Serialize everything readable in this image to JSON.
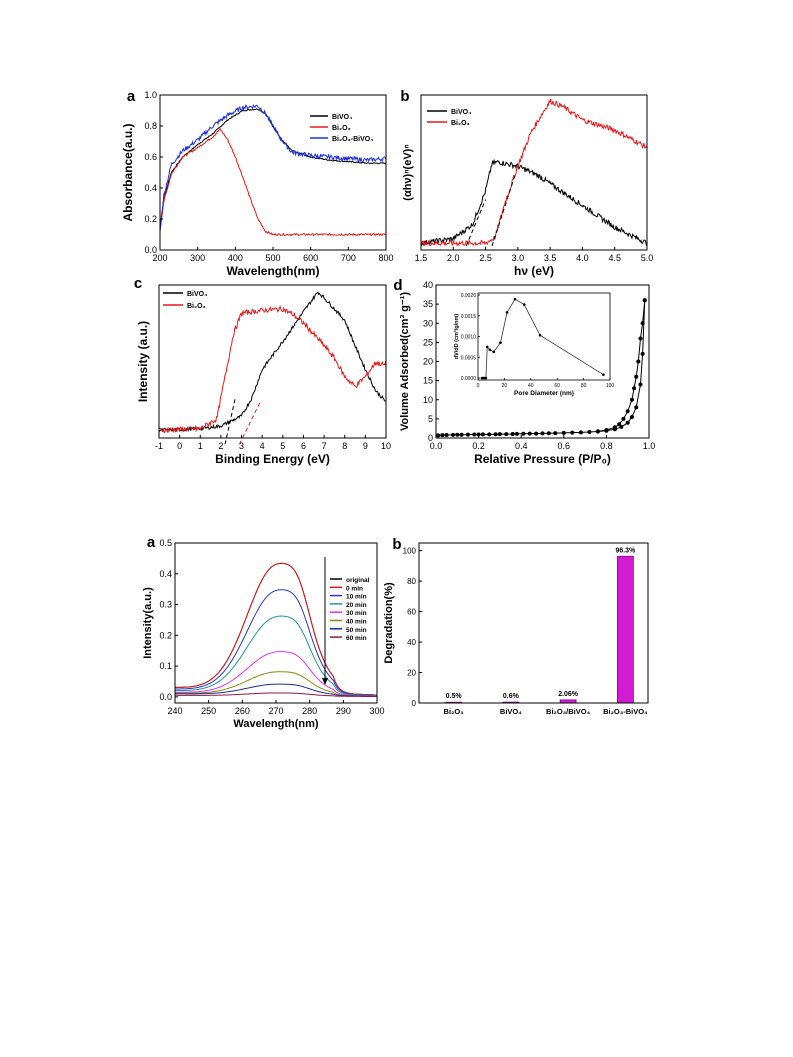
{
  "chart_data": [
    {
      "panel_label": "a",
      "type": "line",
      "xlabel": "Wavelength(nm)",
      "ylabel": "Absorbance(a.u.)",
      "xlim": [
        200,
        800
      ],
      "ylim": [
        0.0,
        1.0
      ],
      "xticks": [
        200,
        300,
        400,
        500,
        600,
        700,
        800
      ],
      "yticks": [
        0.0,
        0.2,
        0.4,
        0.6,
        0.8,
        1.0
      ],
      "legend_position": "top-right",
      "series": [
        {
          "name": "BiVO₄",
          "color": "#000000",
          "noise": 0.004,
          "points": [
            [
              200,
              0.12
            ],
            [
              210,
              0.33
            ],
            [
              230,
              0.5
            ],
            [
              260,
              0.6
            ],
            [
              300,
              0.68
            ],
            [
              340,
              0.75
            ],
            [
              380,
              0.84
            ],
            [
              420,
              0.9
            ],
            [
              460,
              0.91
            ],
            [
              480,
              0.88
            ],
            [
              500,
              0.8
            ],
            [
              520,
              0.72
            ],
            [
              550,
              0.64
            ],
            [
              600,
              0.6
            ],
            [
              650,
              0.58
            ],
            [
              700,
              0.57
            ],
            [
              750,
              0.56
            ],
            [
              800,
              0.56
            ]
          ]
        },
        {
          "name": "Bi₂O₃",
          "color": "#e8191b",
          "noise": 0.006,
          "points": [
            [
              200,
              0.14
            ],
            [
              210,
              0.31
            ],
            [
              230,
              0.49
            ],
            [
              260,
              0.6
            ],
            [
              300,
              0.66
            ],
            [
              340,
              0.73
            ],
            [
              360,
              0.78
            ],
            [
              380,
              0.71
            ],
            [
              400,
              0.6
            ],
            [
              420,
              0.47
            ],
            [
              440,
              0.33
            ],
            [
              460,
              0.2
            ],
            [
              480,
              0.12
            ],
            [
              500,
              0.1
            ],
            [
              550,
              0.1
            ],
            [
              600,
              0.1
            ],
            [
              700,
              0.1
            ],
            [
              800,
              0.1
            ]
          ]
        },
        {
          "name": "Bi₂O₃-BiVO₄",
          "color": "#1f2ee0",
          "noise": 0.014,
          "points": [
            [
              200,
              0.14
            ],
            [
              210,
              0.35
            ],
            [
              230,
              0.55
            ],
            [
              260,
              0.64
            ],
            [
              300,
              0.71
            ],
            [
              340,
              0.8
            ],
            [
              380,
              0.87
            ],
            [
              420,
              0.92
            ],
            [
              460,
              0.93
            ],
            [
              480,
              0.88
            ],
            [
              500,
              0.8
            ],
            [
              520,
              0.72
            ],
            [
              550,
              0.63
            ],
            [
              600,
              0.61
            ],
            [
              650,
              0.6
            ],
            [
              700,
              0.59
            ],
            [
              750,
              0.58
            ],
            [
              800,
              0.59
            ]
          ]
        }
      ]
    },
    {
      "panel_label": "b",
      "type": "line",
      "xlabel": "hν (eV)",
      "ylabel": "(αhν)ⁿ(eV)ⁿ",
      "xlim": [
        1.5,
        5.0
      ],
      "xticks": [
        1.5,
        2.0,
        2.5,
        3.0,
        3.5,
        4.0,
        4.5,
        5.0
      ],
      "y_ticks_shown": false,
      "legend_position": "top-left",
      "series": [
        {
          "name": "BiVO₄",
          "color": "#000000",
          "noise": 0.018,
          "points": [
            [
              1.5,
              0.02
            ],
            [
              2.0,
              0.05
            ],
            [
              2.3,
              0.15
            ],
            [
              2.5,
              0.38
            ],
            [
              2.6,
              0.57
            ],
            [
              2.7,
              0.58
            ],
            [
              3.0,
              0.55
            ],
            [
              3.3,
              0.49
            ],
            [
              3.6,
              0.4
            ],
            [
              4.0,
              0.28
            ],
            [
              4.5,
              0.13
            ],
            [
              5.0,
              0.02
            ]
          ]
        },
        {
          "name": "Bi₂O₃",
          "color": "#e8191b",
          "noise": 0.018,
          "points": [
            [
              1.5,
              0.02
            ],
            [
              2.5,
              0.02
            ],
            [
              2.65,
              0.06
            ],
            [
              2.8,
              0.3
            ],
            [
              3.0,
              0.55
            ],
            [
              3.2,
              0.78
            ],
            [
              3.4,
              0.93
            ],
            [
              3.5,
              1.0
            ],
            [
              3.7,
              0.96
            ],
            [
              4.0,
              0.87
            ],
            [
              4.5,
              0.8
            ],
            [
              5.0,
              0.68
            ]
          ]
        }
      ],
      "tangent_lines": [
        {
          "from": [
            2.2,
            0.0
          ],
          "to": [
            2.5,
            0.32
          ]
        },
        {
          "from": [
            2.6,
            0.0
          ],
          "to": [
            2.95,
            0.48
          ]
        }
      ]
    },
    {
      "panel_label": "c",
      "type": "line",
      "xlabel": "Binding Energy (eV)",
      "ylabel": "Intensity (a.u.)",
      "xlim": [
        -1,
        10
      ],
      "xticks": [
        -1,
        0,
        1,
        2,
        3,
        4,
        5,
        6,
        7,
        8,
        9,
        10
      ],
      "y_ticks_shown": false,
      "legend_position": "top-left",
      "series": [
        {
          "name": "BiVO₄",
          "color": "#000000",
          "noise": 0.012,
          "points": [
            [
              -1,
              0.02
            ],
            [
              1,
              0.03
            ],
            [
              2,
              0.05
            ],
            [
              3,
              0.12
            ],
            [
              3.5,
              0.25
            ],
            [
              4,
              0.45
            ],
            [
              5,
              0.65
            ],
            [
              6,
              0.86
            ],
            [
              6.7,
              1.0
            ],
            [
              7,
              0.96
            ],
            [
              8,
              0.8
            ],
            [
              8.5,
              0.62
            ],
            [
              9,
              0.45
            ],
            [
              9.5,
              0.3
            ],
            [
              10,
              0.22
            ]
          ]
        },
        {
          "name": "Bi₂O₃",
          "color": "#e8191b",
          "noise": 0.018,
          "points": [
            [
              -1,
              0.02
            ],
            [
              1,
              0.03
            ],
            [
              1.8,
              0.1
            ],
            [
              2.2,
              0.4
            ],
            [
              2.6,
              0.7
            ],
            [
              3,
              0.85
            ],
            [
              4,
              0.87
            ],
            [
              5,
              0.88
            ],
            [
              5.5,
              0.84
            ],
            [
              6,
              0.78
            ],
            [
              7,
              0.62
            ],
            [
              7.5,
              0.53
            ],
            [
              8,
              0.4
            ],
            [
              8.5,
              0.33
            ],
            [
              9,
              0.4
            ],
            [
              9.5,
              0.5
            ],
            [
              10,
              0.48
            ]
          ]
        }
      ],
      "tangent_lines": [
        {
          "from": [
            2.2,
            -0.08
          ],
          "to": [
            2.7,
            0.25
          ]
        },
        {
          "from": [
            2.9,
            -0.08
          ],
          "to": [
            3.9,
            0.22
          ]
        }
      ]
    },
    {
      "panel_label": "d",
      "type": "line",
      "xlabel": "Relative Pressure (P/P₀)",
      "ylabel": "Volume Adsorbed(cm³ g⁻¹)",
      "xlim": [
        0.0,
        1.0
      ],
      "ylim": [
        0,
        40
      ],
      "xticks": [
        0.0,
        0.2,
        0.4,
        0.6,
        0.8,
        1.0
      ],
      "yticks": [
        0,
        5,
        10,
        15,
        20,
        25,
        30,
        35,
        40
      ],
      "series": [
        {
          "name": "adsorption",
          "color": "#000000",
          "x": [
            0.01,
            0.03,
            0.05,
            0.08,
            0.1,
            0.12,
            0.15,
            0.18,
            0.2,
            0.22,
            0.25,
            0.28,
            0.3,
            0.33,
            0.36,
            0.38,
            0.41,
            0.44,
            0.47,
            0.5,
            0.53,
            0.56,
            0.6,
            0.64,
            0.68,
            0.72,
            0.76,
            0.8,
            0.84,
            0.87,
            0.9,
            0.92,
            0.94,
            0.96,
            0.97,
            0.98
          ],
          "y": [
            0.7,
            0.75,
            0.8,
            0.82,
            0.84,
            0.86,
            0.88,
            0.9,
            0.92,
            0.94,
            0.96,
            0.98,
            1.0,
            1.02,
            1.05,
            1.08,
            1.1,
            1.13,
            1.16,
            1.2,
            1.24,
            1.28,
            1.33,
            1.4,
            1.48,
            1.58,
            1.7,
            1.9,
            2.3,
            2.9,
            4.0,
            5.5,
            8.0,
            14.0,
            22.0,
            36.0
          ]
        },
        {
          "name": "desorption",
          "color": "#000000",
          "x": [
            0.98,
            0.97,
            0.96,
            0.95,
            0.94,
            0.93,
            0.92,
            0.9,
            0.88,
            0.86,
            0.84,
            0.8,
            0.76
          ],
          "y": [
            36.0,
            30.0,
            26.0,
            20.0,
            16.0,
            13.0,
            10.0,
            7.0,
            5.0,
            3.6,
            2.8,
            2.1,
            1.75
          ]
        }
      ],
      "inset": {
        "type": "line",
        "xlabel": "Pore Diameter (nm)",
        "ylabel": "dV/dD (cm³/g/nm)",
        "xlim": [
          0,
          100
        ],
        "ylim": [
          0,
          0.002
        ],
        "xticks": [
          0,
          20,
          40,
          60,
          80,
          100
        ],
        "yticks": [
          0.0,
          0.0005,
          0.001,
          0.0015,
          0.002
        ],
        "ytick_labels": [
          "0.0000",
          "0.0005",
          "0.0010",
          "0.0015",
          "0.0020"
        ],
        "x": [
          3,
          4,
          5,
          6,
          7,
          9,
          12,
          17,
          22,
          28,
          35,
          47,
          95
        ],
        "y": [
          0.0,
          0.0,
          0.0,
          0.0,
          0.00075,
          0.00068,
          0.00063,
          0.00085,
          0.00158,
          0.0019,
          0.00177,
          0.00103,
          8e-05
        ]
      }
    },
    {
      "panel_label": "a",
      "type": "line",
      "xlabel": "Wavelength(nm)",
      "ylabel": "Intensity(a.u.)",
      "xlim": [
        240,
        300
      ],
      "ylim": [
        -0.02,
        0.5
      ],
      "xticks": [
        240,
        250,
        260,
        270,
        280,
        290,
        300
      ],
      "yticks": [
        0.0,
        0.1,
        0.2,
        0.3,
        0.4,
        0.5
      ],
      "ytick_labels": [
        "0.0",
        "0.1",
        "0.2",
        "0.3",
        "0.4",
        "0.5"
      ],
      "legend_position": "right",
      "peak_nm": 270,
      "series": [
        {
          "name": "original",
          "color": "#000000",
          "peak": 0.43,
          "base": 0.03
        },
        {
          "name": "0 min",
          "color": "#e8191b",
          "peak": 0.43,
          "base": 0.03
        },
        {
          "name": "10 min",
          "color": "#2836c7",
          "peak": 0.345,
          "base": 0.025
        },
        {
          "name": "20 min",
          "color": "#1f9896",
          "peak": 0.26,
          "base": 0.02
        },
        {
          "name": "30 min",
          "color": "#e632e6",
          "peak": 0.145,
          "base": 0.015
        },
        {
          "name": "40 min",
          "color": "#8a8a12",
          "peak": 0.08,
          "base": 0.012
        },
        {
          "name": "50 min",
          "color": "#1f2b8f",
          "peak": 0.04,
          "base": 0.01
        },
        {
          "name": "60 min",
          "color": "#8b1a4a",
          "peak": 0.012,
          "base": 0.005
        }
      ]
    },
    {
      "panel_label": "b",
      "type": "bar",
      "ylabel": "Degradation(%)",
      "ylim": [
        0,
        105
      ],
      "yticks": [
        0,
        20,
        40,
        60,
        80,
        100
      ],
      "categories": [
        "Bi₂O₃",
        "BiVO₄",
        "Bi₂O₃/BiVO₄",
        "Bi₂O₃-BiVO₄"
      ],
      "values": [
        0.5,
        0.6,
        2.06,
        96.3
      ],
      "data_labels": [
        "0.5%",
        "0.6%",
        "2.06%",
        "96.3%"
      ],
      "bar_color": "#d41bd4"
    }
  ]
}
